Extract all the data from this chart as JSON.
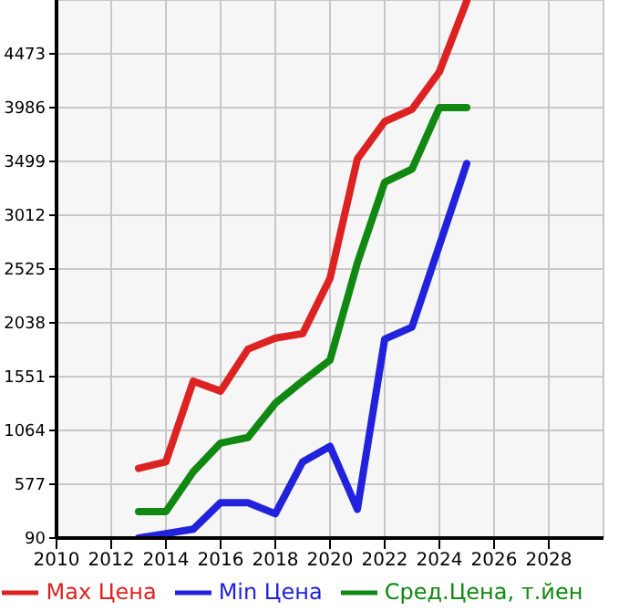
{
  "chart_data": {
    "type": "line",
    "x": [
      2013,
      2014,
      2015,
      2016,
      2017,
      2018,
      2019,
      2020,
      2021,
      2022,
      2023,
      2024,
      2025
    ],
    "series": [
      {
        "name": "Max Цена",
        "color": "#dd2222",
        "values": [
          720,
          780,
          1510,
          1420,
          1800,
          1900,
          1940,
          2440,
          3520,
          3860,
          3970,
          4310,
          4950
        ]
      },
      {
        "name": "Min Цена",
        "color": "#2222dd",
        "values": [
          90,
          130,
          170,
          410,
          410,
          310,
          780,
          920,
          350,
          1890,
          2000,
          2740,
          3480
        ]
      },
      {
        "name": "Сред.Цена, т.йен",
        "color": "#118811",
        "values": [
          330,
          330,
          690,
          950,
          1000,
          1310,
          1510,
          1700,
          2580,
          3310,
          3430,
          3986,
          3986
        ]
      }
    ],
    "xlim": [
      2010,
      2030
    ],
    "xticks": [
      2010,
      2012,
      2014,
      2016,
      2018,
      2020,
      2022,
      2024,
      2026,
      2028
    ],
    "ylim": [
      90,
      4960
    ],
    "yticks": [
      90,
      577,
      1064,
      1551,
      2038,
      2525,
      3012,
      3499,
      3986,
      4473
    ],
    "grid": true,
    "legend": "bottom",
    "marker": "none",
    "line_style": "solid"
  }
}
